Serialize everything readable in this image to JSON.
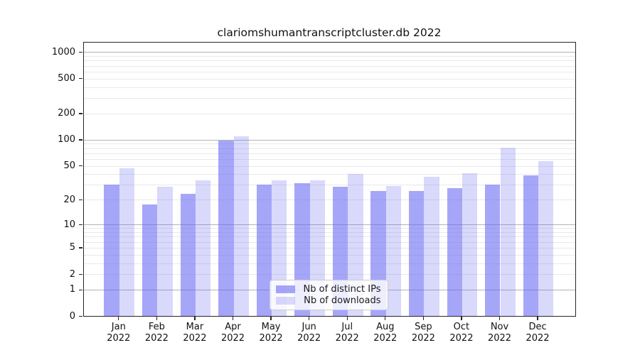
{
  "chart_data": {
    "type": "bar",
    "title": "clariomshumantranscriptcluster.db 2022",
    "year": "2022",
    "categories": [
      "Jan",
      "Feb",
      "Mar",
      "Apr",
      "May",
      "Jun",
      "Jul",
      "Aug",
      "Sep",
      "Oct",
      "Nov",
      "Dec"
    ],
    "series": [
      {
        "name": "Nb of distinct IPs",
        "values": [
          31,
          18,
          24,
          100,
          31,
          32,
          29,
          26,
          26,
          28,
          31,
          40
        ]
      },
      {
        "name": "Nb of downloads",
        "values": [
          48,
          29,
          35,
          113,
          35,
          35,
          41,
          30,
          38,
          42,
          83,
          58
        ]
      }
    ],
    "y_ticks": [
      0,
      1,
      2,
      5,
      10,
      20,
      50,
      100,
      200,
      500,
      1000
    ],
    "y_scale": "log1p",
    "ylim": [
      0,
      1300
    ],
    "grid": true,
    "legend_position": "lower-center",
    "xlabel": "",
    "ylabel": ""
  },
  "colors": {
    "bar_distinct_ips": "rgba(102,102,245,0.58)",
    "bar_downloads": "rgba(102,102,245,0.25)",
    "grid_major": "#b3b3b3",
    "grid_minor": "#e9e9e9",
    "axis": "#262626",
    "text": "#111111",
    "legend_border": "#cccccc"
  }
}
